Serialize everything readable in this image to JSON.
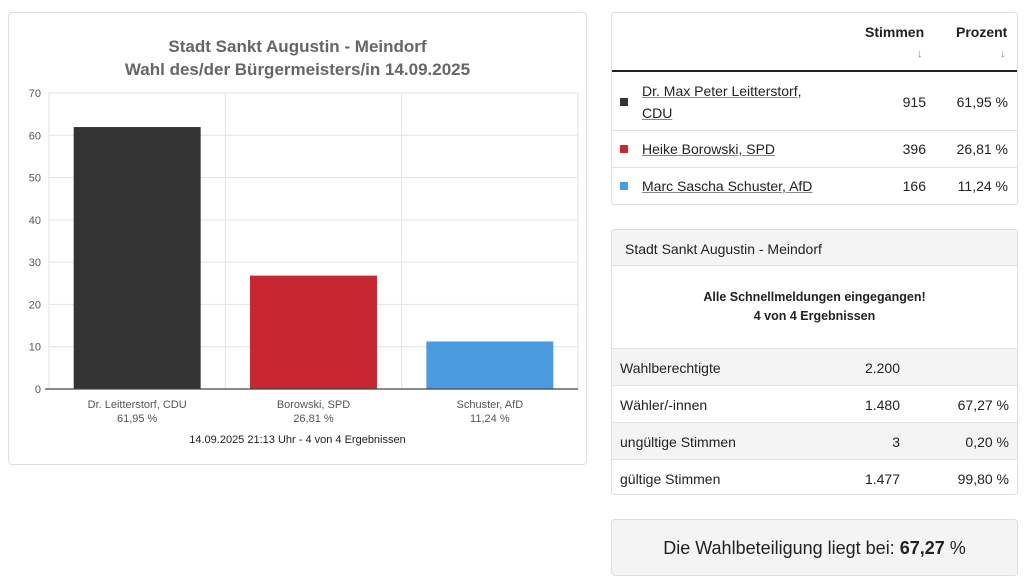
{
  "chart": {
    "title_line1": "Stadt Sankt Augustin - Meindorf",
    "title_line2": "Wahl des/der Bürgermeisters/in 14.09.2025",
    "footer": "14.09.2025 21:13 Uhr - 4 von 4 Ergebnissen"
  },
  "chart_data": {
    "type": "bar",
    "title": "Stadt Sankt Augustin - Meindorf — Wahl des/der Bürgermeisters/in 14.09.2025",
    "categories": [
      "Dr. Leitterstorf, CDU",
      "Borowski, SPD",
      "Schuster, AfD"
    ],
    "category_sublabels": [
      "61,95 %",
      "26,81 %",
      "11,24 %"
    ],
    "values": [
      61.95,
      26.81,
      11.24
    ],
    "colors": [
      "#333333",
      "#c62731",
      "#4a9be0"
    ],
    "ylim": [
      0,
      70
    ],
    "yticks": [
      0,
      10,
      20,
      30,
      40,
      50,
      60,
      70
    ],
    "grid": true,
    "xlabel": "",
    "ylabel": ""
  },
  "results": {
    "header_votes": "Stimmen",
    "header_pct": "Prozent",
    "sort_icon": "↓",
    "rows": [
      {
        "name": "Dr. Max Peter Leitterstorf,\nCDU",
        "name_l1": "Dr. Max Peter Leitterstorf,",
        "name_l2": "CDU",
        "votes": "915",
        "pct": "61,95 %",
        "color": "#333333"
      },
      {
        "name": "Heike Borowski, SPD",
        "votes": "396",
        "pct": "26,81 %",
        "color": "#c62731"
      },
      {
        "name": "Marc Sascha Schuster, AfD",
        "votes": "166",
        "pct": "11,24 %",
        "color": "#4a9be0"
      }
    ]
  },
  "stats": {
    "header": "Stadt Sankt Augustin - Meindorf",
    "message_l1": "Alle Schnellmeldungen eingegangen!",
    "message_l2": "4 von 4 Ergebnissen",
    "rows": [
      {
        "label": "Wahlberechtigte",
        "value": "2.200",
        "pct": ""
      },
      {
        "label": "Wähler/-innen",
        "value": "1.480",
        "pct": "67,27 %"
      },
      {
        "label": "ungültige Stimmen",
        "value": "3",
        "pct": "0,20 %"
      },
      {
        "label": "gültige Stimmen",
        "value": "1.477",
        "pct": "99,80 %"
      }
    ]
  },
  "turnout": {
    "prefix": "Die Wahlbeteiligung liegt bei: ",
    "value": "67,27",
    "suffix": " %"
  }
}
